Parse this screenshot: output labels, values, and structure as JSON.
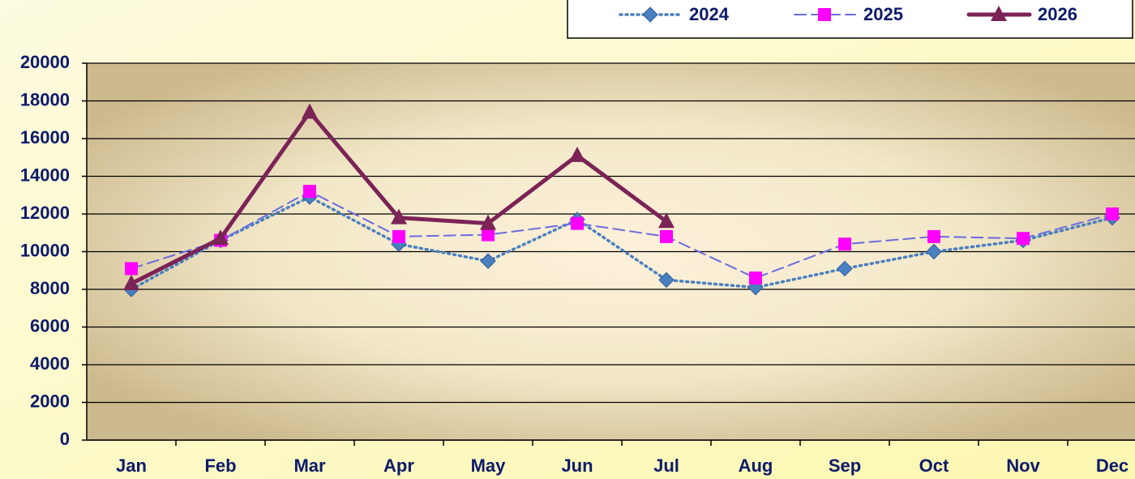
{
  "chart_data": {
    "type": "line",
    "categories": [
      "Jan",
      "Feb",
      "Mar",
      "Apr",
      "May",
      "Jun",
      "Jul",
      "Aug",
      "Sep",
      "Oct",
      "Nov",
      "Dec"
    ],
    "series": [
      {
        "name": "2024",
        "color": "#4a7fc0",
        "line_style": "dotted",
        "marker": "diamond",
        "values": [
          8000,
          10600,
          12900,
          10400,
          9500,
          11700,
          8500,
          8100,
          9100,
          10000,
          10600,
          11800
        ]
      },
      {
        "name": "2025",
        "color": "#ff00ff",
        "line_color": "#6b6be0",
        "line_style": "dashed",
        "marker": "square",
        "values": [
          9100,
          10600,
          13200,
          10800,
          10900,
          11500,
          10800,
          8600,
          10400,
          10800,
          10700,
          12000
        ]
      },
      {
        "name": "2026",
        "color": "#7b2356",
        "line_style": "solid",
        "marker": "triangle",
        "values": [
          8300,
          10700,
          17400,
          11800,
          11500,
          15100,
          11600,
          null,
          null,
          null,
          null,
          null
        ]
      }
    ],
    "ylim": [
      0,
      20000
    ],
    "yticks": [
      0,
      2000,
      4000,
      6000,
      8000,
      10000,
      12000,
      14000,
      16000,
      18000,
      20000
    ],
    "grid": true,
    "legend": "top-right"
  }
}
